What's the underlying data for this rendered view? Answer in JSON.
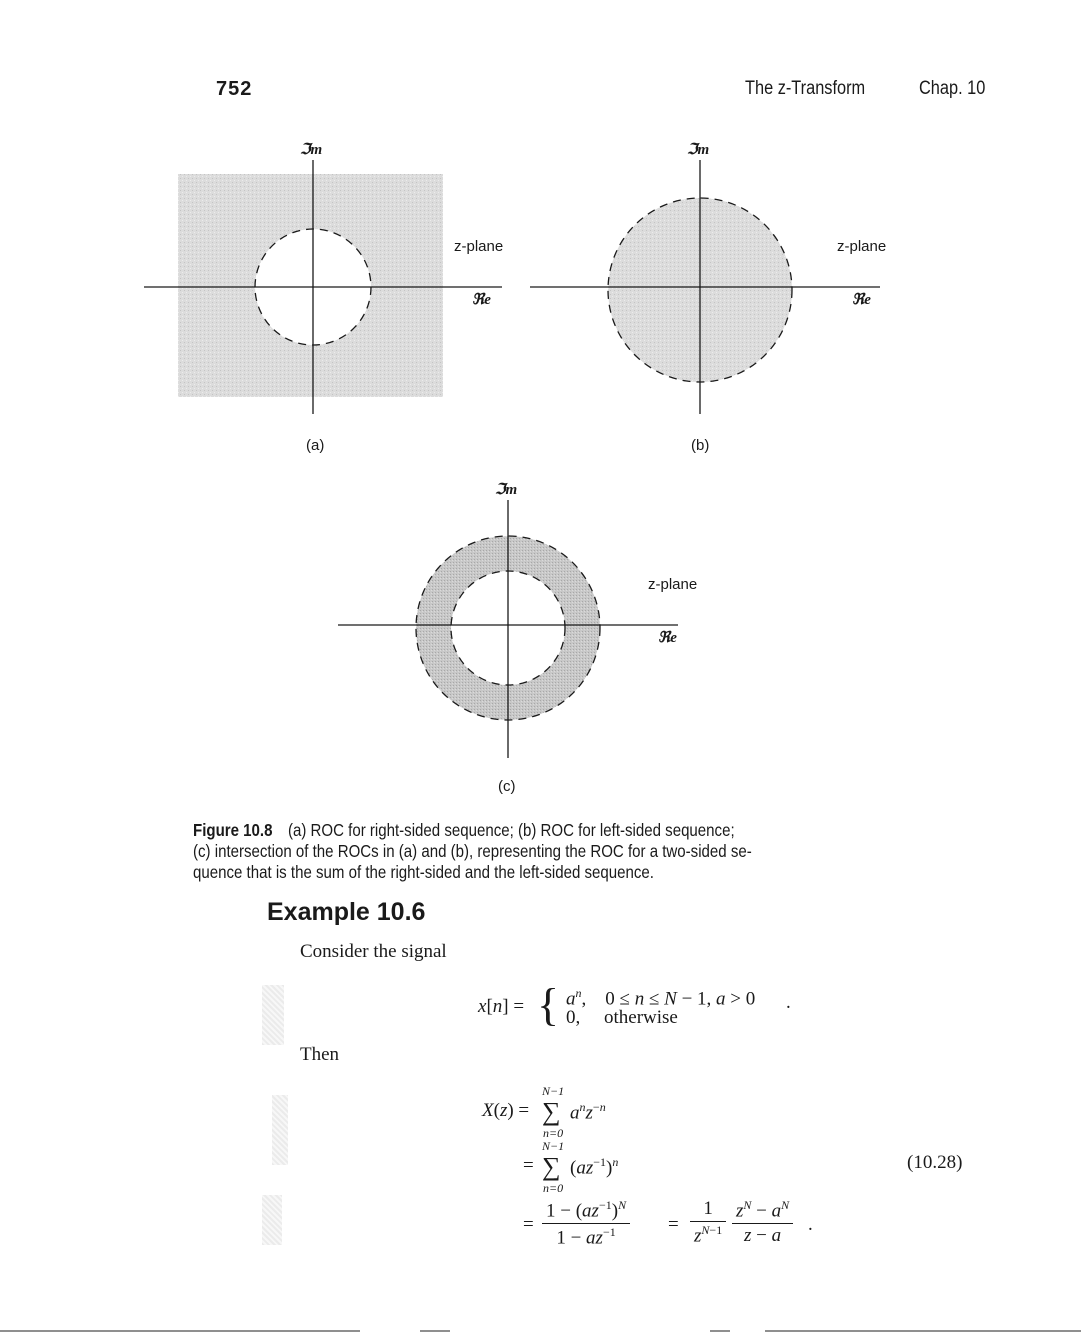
{
  "header": {
    "page_number": "752",
    "running_title": "The z-Transform",
    "chapter": "Chap. 10"
  },
  "figure": {
    "im_label": "ℑm",
    "re_label": "ℜe",
    "plane_label": "z-plane",
    "panel_a": "(a)",
    "panel_b": "(b)",
    "panel_c": "(c)",
    "caption_id": "Figure 10.8",
    "caption_line1": "(a) ROC for right-sided sequence; (b) ROC for left-sided sequence;",
    "caption_line2": "(c) intersection of the ROCs in (a) and (b), representing the ROC for a two-sided se-",
    "caption_line3": "quence that is the sum of the right-sided and the left-sided sequence."
  },
  "example": {
    "title": "Example 10.6",
    "intro": "Consider the signal",
    "then": "Then",
    "equation_number": "(10.28)"
  }
}
